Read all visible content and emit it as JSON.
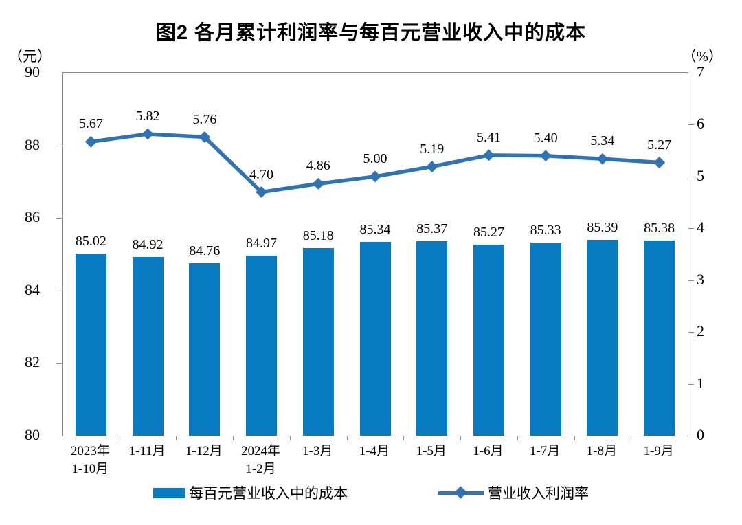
{
  "title": "图2 各月累计利润率与每百元营业收入中的成本",
  "left_axis_unit": "（元）",
  "right_axis_unit": "（%）",
  "colors": {
    "bar": "#087ac1",
    "line": "#2e74b5",
    "axis": "#8a8a8a",
    "text": "#000000"
  },
  "legend": {
    "bar_label": "每百元营业收入中的成本",
    "line_label": "营业收入利润率"
  },
  "chart_data": {
    "type": "bar",
    "subtype": "bar+line dual axis",
    "title": "图2 各月累计利润率与每百元营业收入中的成本",
    "categories": [
      "2023年\n1-10月",
      "1-11月",
      "1-12月",
      "2024年\n1-2月",
      "1-3月",
      "1-4月",
      "1-5月",
      "1-6月",
      "1-7月",
      "1-8月",
      "1-9月"
    ],
    "series": [
      {
        "name": "每百元营业收入中的成本",
        "type": "bar",
        "axis": "left",
        "values": [
          85.02,
          84.92,
          84.76,
          84.97,
          85.18,
          85.34,
          85.37,
          85.27,
          85.33,
          85.39,
          85.38
        ]
      },
      {
        "name": "营业收入利润率",
        "type": "line",
        "axis": "right",
        "values": [
          5.67,
          5.82,
          5.76,
          4.7,
          4.86,
          5.0,
          5.19,
          5.41,
          5.4,
          5.34,
          5.27
        ]
      }
    ],
    "left_axis": {
      "unit": "元",
      "min": 80,
      "max": 90,
      "ticks": [
        90,
        88,
        86,
        84,
        82,
        80
      ]
    },
    "right_axis": {
      "unit": "%",
      "min": 0,
      "max": 7,
      "ticks": [
        7,
        6,
        5,
        4,
        3,
        2,
        1,
        0
      ]
    },
    "grid": false,
    "legend_position": "bottom"
  }
}
